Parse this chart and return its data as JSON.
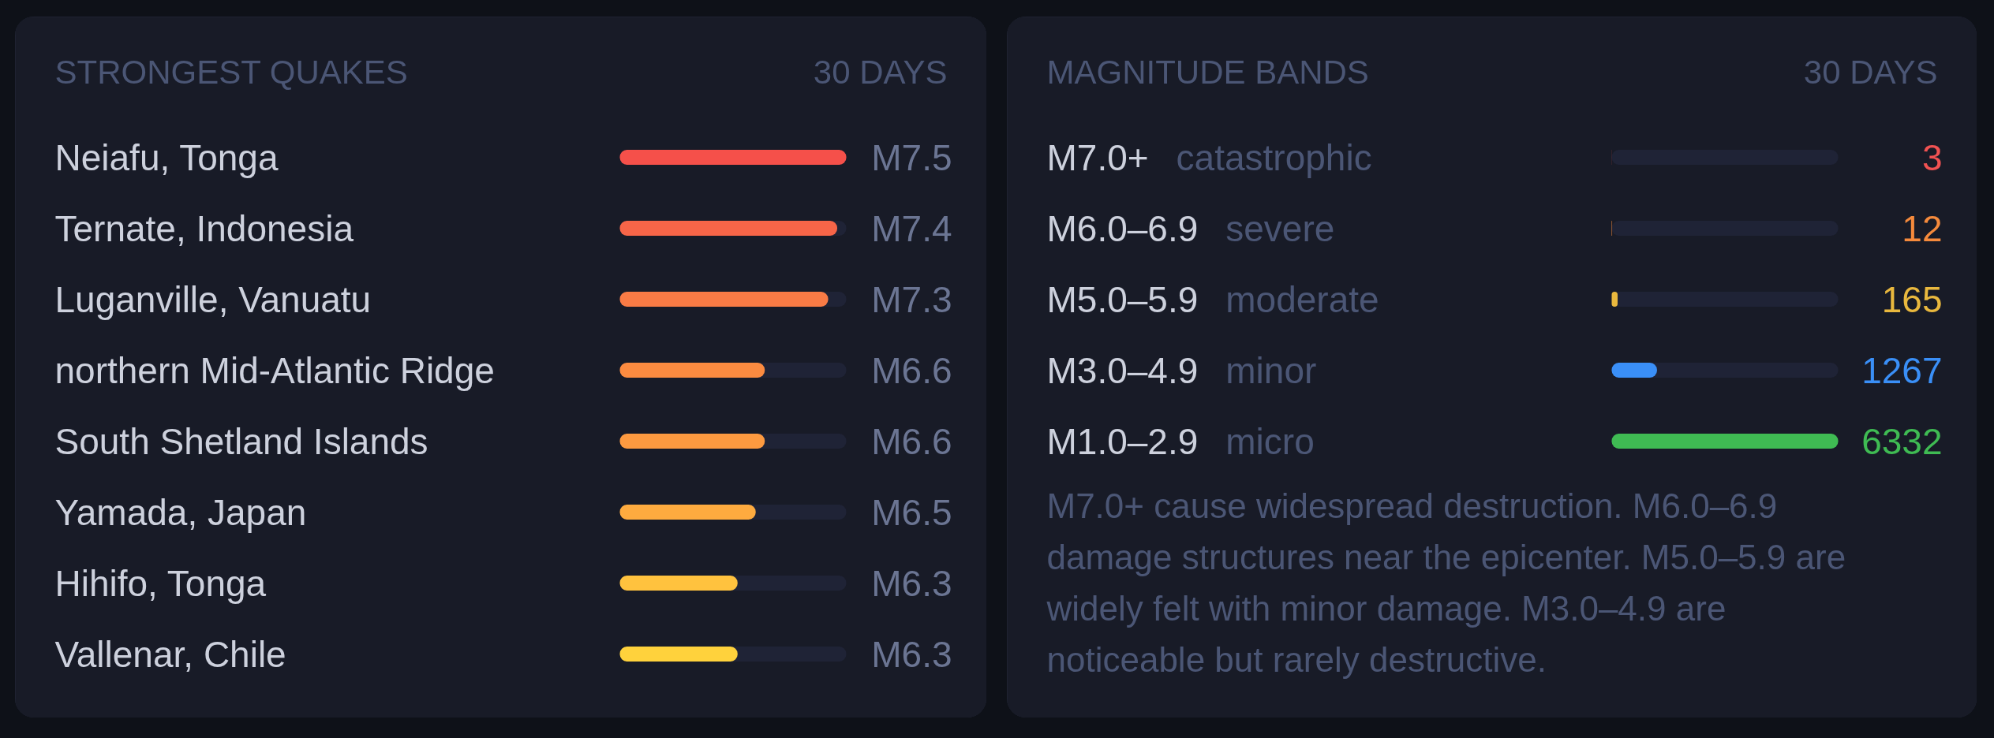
{
  "chart_data": [
    {
      "type": "bar",
      "orientation": "horizontal",
      "title": "STRONGEST QUAKES",
      "subtitle": "30 DAYS",
      "categories": [
        "Neiafu, Tonga",
        "Ternate, Indonesia",
        "Luganville, Vanuatu",
        "northern Mid-Atlantic Ridge",
        "South Shetland Islands",
        "Yamada, Japan",
        "Hihifo, Tonga",
        "Vallenar, Chile"
      ],
      "values": [
        7.5,
        7.4,
        7.3,
        6.6,
        6.6,
        6.5,
        6.3,
        6.3
      ],
      "value_labels": [
        "M7.5",
        "M7.4",
        "M7.3",
        "M6.6",
        "M6.6",
        "M6.5",
        "M6.3",
        "M6.3"
      ],
      "colors": [
        "#f5504a",
        "#f76548",
        "#f97b45",
        "#fb8b40",
        "#fd9a40",
        "#feab3f",
        "#ffc23e",
        "#ffd23c"
      ],
      "xlim": [
        5,
        7.5
      ]
    },
    {
      "type": "bar",
      "orientation": "horizontal",
      "title": "MAGNITUDE BANDS",
      "subtitle": "30 DAYS",
      "categories": [
        "M7.0+",
        "M6.0–6.9",
        "M5.0–5.9",
        "M3.0–4.9",
        "M1.0–2.9"
      ],
      "y2_categories": [
        "catastrophic",
        "severe",
        "moderate",
        "minor",
        "micro"
      ],
      "values": [
        3,
        12,
        165,
        1267,
        6332
      ],
      "data_labels": true,
      "colors": [
        "#f05252",
        "#f58a3c",
        "#e9b83e",
        "#3a8ff7",
        "#3fbb53"
      ],
      "xlim": [
        0,
        6332
      ],
      "annotations": [
        "M7.0+ cause widespread destruction. M6.0–6.9 damage structures near the epicenter. M5.0–5.9 are widely felt with minor damage. M3.0–4.9 are noticeable but rarely destructive."
      ]
    }
  ]
}
